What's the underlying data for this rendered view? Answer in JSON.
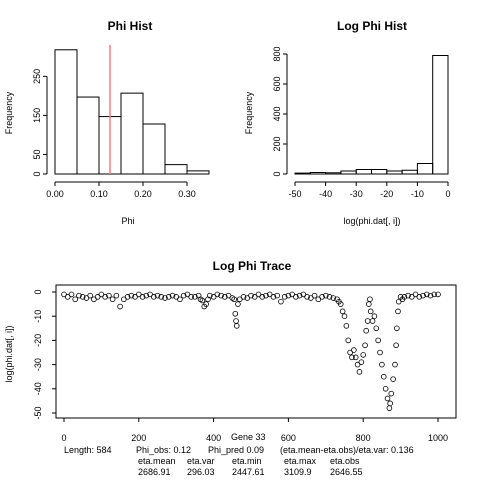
{
  "chart_data": [
    {
      "type": "bar",
      "title": "Phi Hist",
      "xlabel": "Phi",
      "ylabel": "Frequency",
      "bin_edges": [
        0.0,
        0.05,
        0.1,
        0.15,
        0.2,
        0.25,
        0.3,
        0.35
      ],
      "values": [
        318,
        197,
        147,
        207,
        128,
        24,
        8
      ],
      "xlim": [
        0.0,
        0.35
      ],
      "ylim": [
        0,
        320
      ],
      "xticks": [
        0.0,
        0.1,
        0.2,
        0.3
      ],
      "xtick_labels": [
        "0.00",
        "0.10",
        "0.20",
        "0.30"
      ],
      "yticks": [
        0,
        50,
        150,
        250
      ],
      "ytick_labels": [
        "0",
        "50",
        "150",
        "250"
      ],
      "reference_line": {
        "x": 0.125,
        "color": "#f08080"
      }
    },
    {
      "type": "bar",
      "title": "Log Phi Hist",
      "xlabel": "log(phi.dat[, i])",
      "ylabel": "Frequency",
      "bin_edges": [
        -50,
        -45,
        -40,
        -35,
        -30,
        -25,
        -20,
        -15,
        -10,
        -5,
        0
      ],
      "values": [
        6,
        10,
        8,
        20,
        30,
        30,
        20,
        25,
        70,
        790
      ],
      "xlim": [
        -50,
        0
      ],
      "ylim": [
        0,
        800
      ],
      "xticks": [
        -50,
        -40,
        -30,
        -20,
        -10,
        0
      ],
      "xtick_labels": [
        "-50",
        "-40",
        "-30",
        "-20",
        "-10",
        "0"
      ],
      "yticks": [
        0,
        200,
        400,
        600,
        800
      ],
      "ytick_labels": [
        "0",
        "200",
        "400",
        "600",
        "800"
      ]
    },
    {
      "type": "scatter",
      "title": "Log Phi Trace",
      "ylabel": "log(phi.dat[, i])",
      "xlim": [
        0,
        1000
      ],
      "ylim": [
        -50,
        0
      ],
      "xticks": [
        0,
        200,
        400,
        600,
        800,
        1000
      ],
      "xtick_labels": [
        "0",
        "200",
        "400",
        "600",
        "800",
        "1000"
      ],
      "yticks": [
        0,
        -10,
        -20,
        -30,
        -40,
        -50
      ],
      "ytick_labels": [
        "0",
        "-10",
        "-20",
        "-30",
        "-40",
        "-50"
      ],
      "points": [
        [
          0,
          -1.0
        ],
        [
          10,
          -2.0
        ],
        [
          20,
          -1.0
        ],
        [
          30,
          -3.0
        ],
        [
          40,
          -1.5
        ],
        [
          50,
          -2.0
        ],
        [
          60,
          -2.5
        ],
        [
          70,
          -1.5
        ],
        [
          80,
          -3.0
        ],
        [
          90,
          -2.0
        ],
        [
          100,
          -1.0
        ],
        [
          110,
          -2.0
        ],
        [
          120,
          -1.5
        ],
        [
          130,
          -3.0
        ],
        [
          140,
          -1.5
        ],
        [
          150,
          -6.0
        ],
        [
          160,
          -3.0
        ],
        [
          170,
          -2.0
        ],
        [
          180,
          -1.5
        ],
        [
          190,
          -2.0
        ],
        [
          200,
          -1.0
        ],
        [
          210,
          -2.0
        ],
        [
          220,
          -1.5
        ],
        [
          230,
          -1.0
        ],
        [
          240,
          -2.0
        ],
        [
          250,
          -1.5
        ],
        [
          260,
          -2.0
        ],
        [
          270,
          -2.5
        ],
        [
          280,
          -2.0
        ],
        [
          290,
          -1.5
        ],
        [
          300,
          -2.0
        ],
        [
          310,
          -3.0
        ],
        [
          320,
          -1.5
        ],
        [
          330,
          -1.0
        ],
        [
          340,
          -2.0
        ],
        [
          350,
          -2.0
        ],
        [
          360,
          -1.5
        ],
        [
          365,
          -3.0
        ],
        [
          370,
          -3.5
        ],
        [
          375,
          -6.0
        ],
        [
          380,
          -5.0
        ],
        [
          385,
          -3.0
        ],
        [
          390,
          -1.5
        ],
        [
          400,
          -2.0
        ],
        [
          410,
          -1.0
        ],
        [
          420,
          -1.5
        ],
        [
          430,
          -2.0
        ],
        [
          440,
          -1.5
        ],
        [
          450,
          -2.5
        ],
        [
          455,
          -3.0
        ],
        [
          458,
          -9.0
        ],
        [
          460,
          -12.0
        ],
        [
          462,
          -14.0
        ],
        [
          465,
          -5.0
        ],
        [
          470,
          -3.0
        ],
        [
          480,
          -2.0
        ],
        [
          490,
          -2.5
        ],
        [
          500,
          -1.5
        ],
        [
          510,
          -2.0
        ],
        [
          520,
          -1.0
        ],
        [
          530,
          -2.0
        ],
        [
          540,
          -1.5
        ],
        [
          550,
          -1.0
        ],
        [
          560,
          -2.0
        ],
        [
          570,
          -1.5
        ],
        [
          580,
          -4.0
        ],
        [
          590,
          -2.0
        ],
        [
          600,
          -1.5
        ],
        [
          610,
          -1.0
        ],
        [
          620,
          -2.0
        ],
        [
          630,
          -1.5
        ],
        [
          640,
          -1.0
        ],
        [
          650,
          -2.0
        ],
        [
          660,
          -2.5
        ],
        [
          670,
          -1.5
        ],
        [
          680,
          -3.0
        ],
        [
          690,
          -2.0
        ],
        [
          700,
          -1.5
        ],
        [
          710,
          -2.0
        ],
        [
          720,
          -2.5
        ],
        [
          730,
          -3.0
        ],
        [
          735,
          -4.0
        ],
        [
          740,
          -5.0
        ],
        [
          745,
          -8.0
        ],
        [
          750,
          -10.0
        ],
        [
          755,
          -14.0
        ],
        [
          760,
          -20.0
        ],
        [
          765,
          -25.0
        ],
        [
          770,
          -27.0
        ],
        [
          775,
          -24.0
        ],
        [
          780,
          -27.0
        ],
        [
          785,
          -30.0
        ],
        [
          790,
          -33.0
        ],
        [
          795,
          -29.0
        ],
        [
          800,
          -26.0
        ],
        [
          805,
          -22.0
        ],
        [
          808,
          -16.0
        ],
        [
          812,
          -12.0
        ],
        [
          815,
          -5.0
        ],
        [
          818,
          -3.0
        ],
        [
          820,
          -8.0
        ],
        [
          825,
          -12.0
        ],
        [
          830,
          -10.0
        ],
        [
          835,
          -15.0
        ],
        [
          840,
          -20.0
        ],
        [
          845,
          -25.0
        ],
        [
          850,
          -30.0
        ],
        [
          855,
          -35.0
        ],
        [
          860,
          -40.0
        ],
        [
          865,
          -44.0
        ],
        [
          870,
          -48.0
        ],
        [
          872,
          -46.0
        ],
        [
          875,
          -42.0
        ],
        [
          880,
          -36.0
        ],
        [
          885,
          -30.0
        ],
        [
          888,
          -22.0
        ],
        [
          890,
          -15.0
        ],
        [
          893,
          -8.0
        ],
        [
          895,
          -4.0
        ],
        [
          900,
          -2.0
        ],
        [
          905,
          -3.0
        ],
        [
          910,
          -2.0
        ],
        [
          920,
          -1.5
        ],
        [
          930,
          -2.0
        ],
        [
          940,
          -1.0
        ],
        [
          950,
          -2.0
        ],
        [
          960,
          -1.5
        ],
        [
          970,
          -1.0
        ],
        [
          980,
          -1.5
        ],
        [
          990,
          -1.0
        ],
        [
          1000,
          -1.0
        ]
      ]
    }
  ],
  "stats": {
    "length": "Length: 584",
    "phi_obs": "Phi_obs: 0.12",
    "gene": "Gene 33",
    "phi_pred": "Phi_pred 0.09",
    "eta_ratio": "(eta.mean-eta.obs)/eta.var: 0.136",
    "eta_mean_label": "eta.mean",
    "eta_var_label": "eta.var",
    "eta_min_label": "eta.min",
    "eta_max_label": "eta.max",
    "eta_obs_label": "eta.obs",
    "eta_mean": "2686.91",
    "eta_var": "296.03",
    "eta_min": "2447.61",
    "eta_max": "3109.9",
    "eta_obs": "2646.55"
  }
}
